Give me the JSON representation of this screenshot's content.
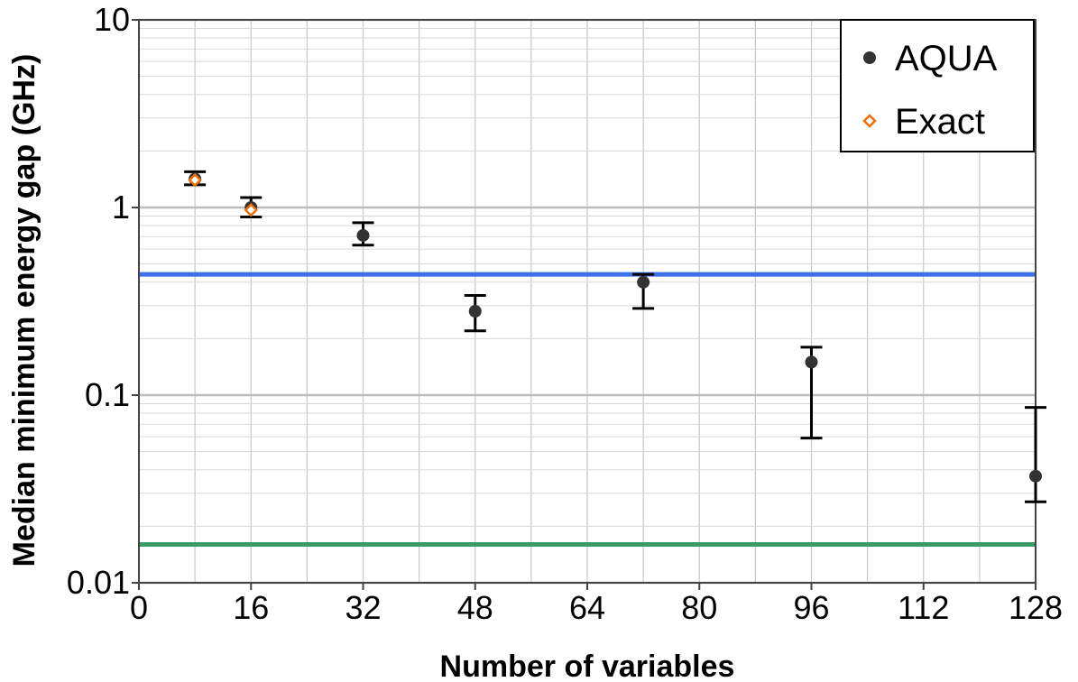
{
  "chart_data": {
    "type": "scatter",
    "xlabel": "Number of variables",
    "ylabel": "Median minimum energy gap (GHz)",
    "xlim": [
      0,
      128
    ],
    "ylim": [
      0.01,
      10
    ],
    "yscale": "log",
    "xticks": [
      "0",
      "16",
      "32",
      "48",
      "64",
      "80",
      "96",
      "112",
      "128"
    ],
    "yticks": [
      "0.01",
      "0.1",
      "1",
      "10"
    ],
    "grid": true,
    "legend_position": "top-right",
    "reference_lines": [
      {
        "y": 0.44,
        "color": "#3f6fe6"
      },
      {
        "y": 0.016,
        "color": "#3a9a68"
      }
    ],
    "series": [
      {
        "name": "AQUA",
        "color": "#333333",
        "marker": "filled-circle",
        "points": [
          {
            "x": 8,
            "y": 1.42,
            "err_low": 1.32,
            "err_high": 1.55
          },
          {
            "x": 16,
            "y": 1.0,
            "err_low": 0.89,
            "err_high": 1.13
          },
          {
            "x": 32,
            "y": 0.71,
            "err_low": 0.63,
            "err_high": 0.83
          },
          {
            "x": 48,
            "y": 0.28,
            "err_low": 0.22,
            "err_high": 0.34
          },
          {
            "x": 72,
            "y": 0.4,
            "err_low": 0.29,
            "err_high": 0.44
          },
          {
            "x": 96,
            "y": 0.15,
            "err_low": 0.059,
            "err_high": 0.18
          },
          {
            "x": 128,
            "y": 0.037,
            "err_low": 0.027,
            "err_high": 0.086
          }
        ]
      },
      {
        "name": "Exact",
        "color": "#f06d0a",
        "marker": "open-diamond",
        "points": [
          {
            "x": 8,
            "y": 1.4
          },
          {
            "x": 16,
            "y": 0.97
          }
        ]
      }
    ]
  }
}
